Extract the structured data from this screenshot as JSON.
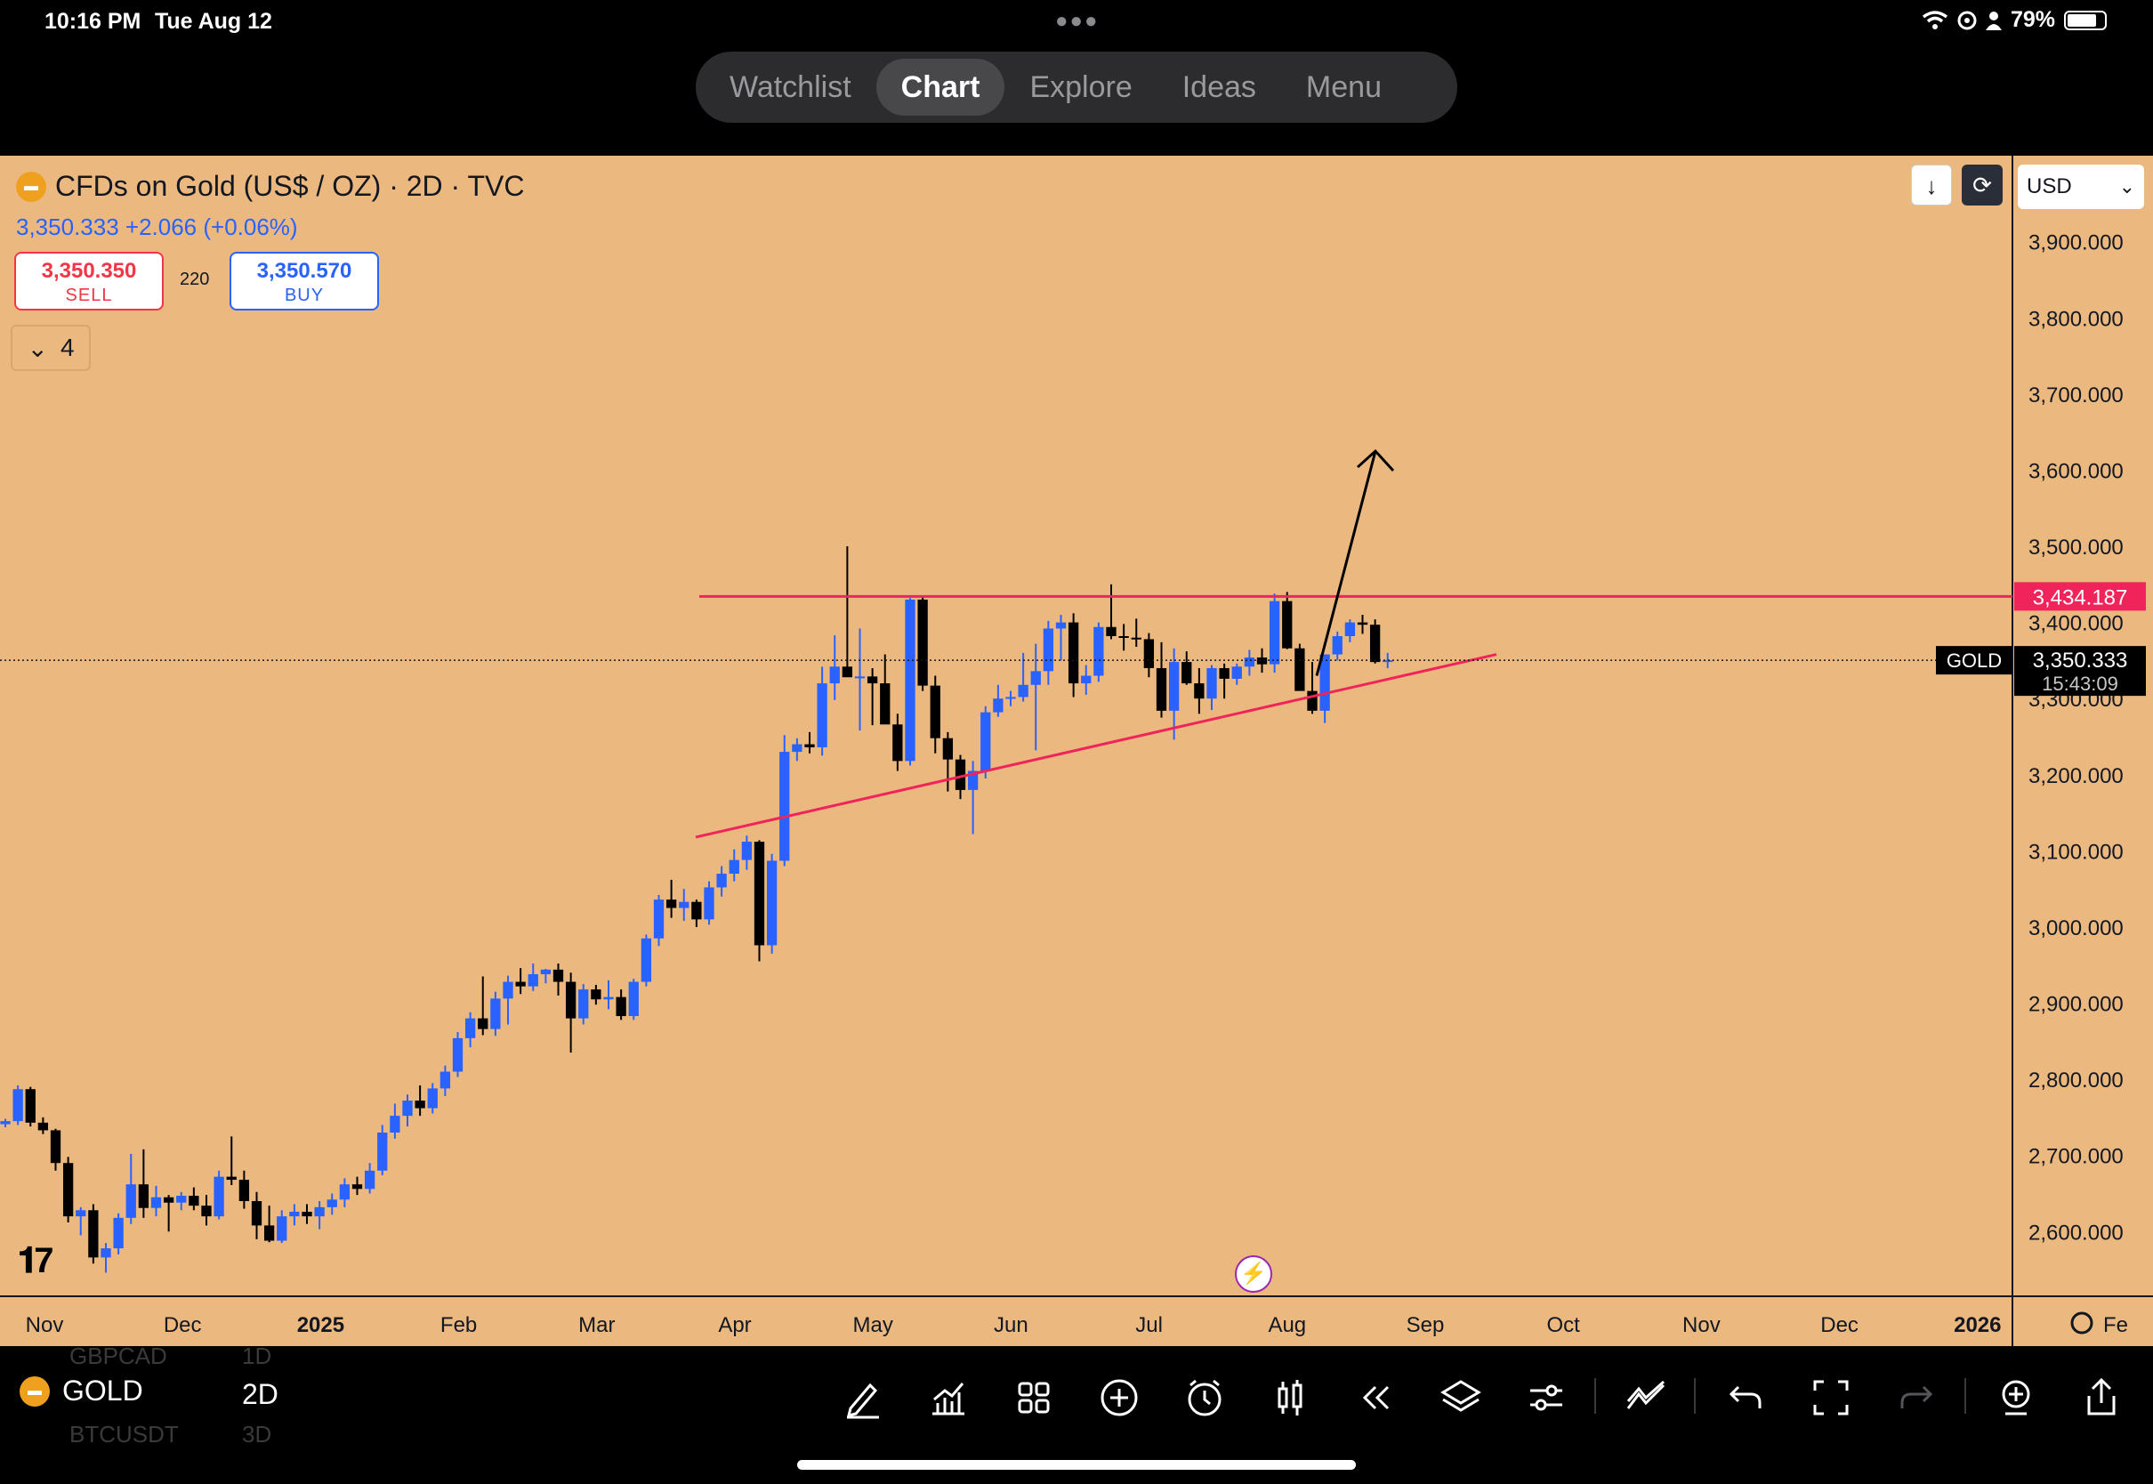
{
  "status_bar": {
    "time": "10:16 PM",
    "date": "Tue Aug 12",
    "battery": "79%",
    "battery_level": 0.79,
    "icons": [
      "wifi-icon",
      "location-icon",
      "person-icon",
      "battery-icon"
    ]
  },
  "top_tabs": [
    {
      "label": "Watchlist",
      "active": false
    },
    {
      "label": "Chart",
      "active": true
    },
    {
      "label": "Explore",
      "active": false
    },
    {
      "label": "Ideas",
      "active": false
    },
    {
      "label": "Menu",
      "active": false
    }
  ],
  "chart_header": {
    "title": "CFDs on Gold (US$ / OZ) · 2D · TVC",
    "price_line": "3,350.333 +2.066 (+0.06%)",
    "sell_price": "3,350.350",
    "sell_label": "SELL",
    "spread": "220",
    "buy_price": "3,350.570",
    "buy_label": "BUY",
    "indicators_count": "4",
    "currency": "USD"
  },
  "colors": {
    "background": "#ebb97f",
    "bull_candle": "#2962ff",
    "bear_candle": "#000000",
    "drawing_line": "#f0245a",
    "arrow": "#000000"
  },
  "chart_data": {
    "type": "candlestick",
    "symbol": "GOLD",
    "interval": "2D",
    "y_axis": {
      "range": [
        2515,
        4013
      ],
      "ticks": [
        "3,900.000",
        "3,800.000",
        "3,700.000",
        "3,600.000",
        "3,500.000",
        "3,400.000",
        "3,300.000",
        "3,200.000",
        "3,100.000",
        "3,000.000",
        "2,900.000",
        "2,800.000",
        "2,700.000",
        "2,600.000"
      ]
    },
    "x_axis": {
      "ticks": [
        "Nov",
        "Dec",
        "2025",
        "Feb",
        "Mar",
        "Apr",
        "May",
        "Jun",
        "Jul",
        "Aug",
        "Sep",
        "Oct",
        "Nov",
        "Dec",
        "2026",
        "Fe"
      ],
      "bold": [
        "2025",
        "2026"
      ]
    },
    "price_labels": [
      {
        "name": "resistance",
        "value": 3434.187,
        "text": "3,434.187"
      },
      {
        "name": "last",
        "value": 3350.333,
        "text": "3,350.333",
        "countdown": "15:43:09",
        "tag": "GOLD"
      }
    ],
    "drawings": [
      {
        "type": "horizontal-line",
        "name": "resistance-line",
        "price": 3434.187,
        "from": "Apr",
        "to": "right-edge"
      },
      {
        "type": "trend-line",
        "name": "ascending-support",
        "from": {
          "date": "Apr",
          "price": 3118
        },
        "to": {
          "date": "Oct",
          "price": 3358
        }
      },
      {
        "type": "arrow",
        "name": "breakout-arrow",
        "from": {
          "date": "Aug/Sep",
          "price": 3330
        },
        "to": {
          "date": "Sep",
          "price": 3625
        }
      }
    ],
    "candles": [
      [
        2741,
        2748,
        2737,
        2745
      ],
      [
        2745,
        2792,
        2740,
        2787
      ],
      [
        2787,
        2790,
        2738,
        2743
      ],
      [
        2743,
        2750,
        2728,
        2733
      ],
      [
        2733,
        2735,
        2680,
        2690
      ],
      [
        2690,
        2698,
        2612,
        2620
      ],
      [
        2620,
        2632,
        2595,
        2628
      ],
      [
        2628,
        2636,
        2558,
        2566
      ],
      [
        2566,
        2585,
        2546,
        2578
      ],
      [
        2578,
        2624,
        2570,
        2618
      ],
      [
        2618,
        2702,
        2610,
        2662
      ],
      [
        2662,
        2708,
        2618,
        2631
      ],
      [
        2631,
        2660,
        2620,
        2645
      ],
      [
        2645,
        2648,
        2600,
        2638
      ],
      [
        2638,
        2652,
        2628,
        2647
      ],
      [
        2647,
        2658,
        2628,
        2634
      ],
      [
        2634,
        2648,
        2608,
        2620
      ],
      [
        2620,
        2680,
        2616,
        2672
      ],
      [
        2672,
        2725,
        2661,
        2668
      ],
      [
        2668,
        2680,
        2630,
        2640
      ],
      [
        2640,
        2652,
        2590,
        2608
      ],
      [
        2608,
        2634,
        2586,
        2588
      ],
      [
        2588,
        2628,
        2585,
        2620
      ],
      [
        2620,
        2636,
        2608,
        2626
      ],
      [
        2626,
        2636,
        2610,
        2620
      ],
      [
        2620,
        2640,
        2603,
        2632
      ],
      [
        2632,
        2650,
        2622,
        2642
      ],
      [
        2642,
        2670,
        2632,
        2662
      ],
      [
        2662,
        2672,
        2648,
        2656
      ],
      [
        2656,
        2690,
        2650,
        2680
      ],
      [
        2680,
        2740,
        2674,
        2730
      ],
      [
        2730,
        2768,
        2722,
        2752
      ],
      [
        2752,
        2780,
        2738,
        2772
      ],
      [
        2772,
        2792,
        2752,
        2762
      ],
      [
        2762,
        2795,
        2755,
        2788
      ],
      [
        2788,
        2818,
        2778,
        2810
      ],
      [
        2810,
        2862,
        2803,
        2854
      ],
      [
        2854,
        2888,
        2842,
        2880
      ],
      [
        2880,
        2935,
        2858,
        2866
      ],
      [
        2866,
        2915,
        2857,
        2906
      ],
      [
        2906,
        2936,
        2872,
        2928
      ],
      [
        2928,
        2946,
        2912,
        2922
      ],
      [
        2922,
        2952,
        2916,
        2938
      ],
      [
        2938,
        2945,
        2926,
        2944
      ],
      [
        2944,
        2952,
        2910,
        2928
      ],
      [
        2928,
        2940,
        2835,
        2880
      ],
      [
        2880,
        2925,
        2872,
        2918
      ],
      [
        2918,
        2924,
        2898,
        2905
      ],
      [
        2905,
        2930,
        2892,
        2908
      ],
      [
        2908,
        2918,
        2878,
        2883
      ],
      [
        2883,
        2932,
        2878,
        2928
      ],
      [
        2928,
        2990,
        2922,
        2985
      ],
      [
        2985,
        3042,
        2975,
        3036
      ],
      [
        3036,
        3062,
        3012,
        3025
      ],
      [
        3025,
        3050,
        3008,
        3033
      ],
      [
        3033,
        3036,
        3000,
        3010
      ],
      [
        3010,
        3060,
        3003,
        3052
      ],
      [
        3052,
        3080,
        3040,
        3070
      ],
      [
        3070,
        3102,
        3060,
        3088
      ],
      [
        3088,
        3120,
        3075,
        3112
      ],
      [
        3112,
        3114,
        2955,
        2976
      ],
      [
        2976,
        3096,
        2965,
        3087
      ],
      [
        3087,
        3252,
        3080,
        3230
      ],
      [
        3230,
        3248,
        3218,
        3240
      ],
      [
        3240,
        3256,
        3228,
        3236
      ],
      [
        3236,
        3342,
        3225,
        3320
      ],
      [
        3320,
        3383,
        3298,
        3342
      ],
      [
        3342,
        3500,
        3330,
        3328
      ],
      [
        3328,
        3392,
        3258,
        3329
      ],
      [
        3329,
        3340,
        3265,
        3320
      ],
      [
        3320,
        3358,
        3270,
        3266
      ],
      [
        3266,
        3280,
        3205,
        3218
      ],
      [
        3218,
        3432,
        3212,
        3430
      ],
      [
        3430,
        3435,
        3310,
        3317
      ],
      [
        3317,
        3330,
        3228,
        3248
      ],
      [
        3248,
        3256,
        3178,
        3220
      ],
      [
        3220,
        3226,
        3168,
        3180
      ],
      [
        3180,
        3218,
        3122,
        3205
      ],
      [
        3205,
        3290,
        3195,
        3282
      ],
      [
        3282,
        3318,
        3276,
        3300
      ],
      [
        3300,
        3310,
        3290,
        3302
      ],
      [
        3302,
        3360,
        3296,
        3318
      ],
      [
        3318,
        3372,
        3232,
        3336
      ],
      [
        3336,
        3402,
        3318,
        3392
      ],
      [
        3392,
        3410,
        3350,
        3400
      ],
      [
        3400,
        3412,
        3302,
        3320
      ],
      [
        3320,
        3344,
        3305,
        3330
      ],
      [
        3330,
        3400,
        3322,
        3394
      ],
      [
        3394,
        3450,
        3378,
        3382
      ],
      [
        3382,
        3398,
        3363,
        3380
      ],
      [
        3380,
        3405,
        3368,
        3378
      ],
      [
        3378,
        3386,
        3328,
        3340
      ],
      [
        3340,
        3374,
        3275,
        3284
      ],
      [
        3284,
        3366,
        3246,
        3348
      ],
      [
        3348,
        3362,
        3318,
        3320
      ],
      [
        3320,
        3340,
        3280,
        3300
      ],
      [
        3300,
        3344,
        3285,
        3340
      ],
      [
        3340,
        3346,
        3300,
        3326
      ],
      [
        3326,
        3346,
        3318,
        3342
      ],
      [
        3342,
        3364,
        3330,
        3354
      ],
      [
        3354,
        3366,
        3334,
        3345
      ],
      [
        3345,
        3438,
        3334,
        3428
      ],
      [
        3428,
        3440,
        3365,
        3366
      ],
      [
        3366,
        3372,
        3320,
        3310
      ],
      [
        3310,
        3348,
        3280,
        3284
      ],
      [
        3284,
        3358,
        3268,
        3358
      ],
      [
        3358,
        3388,
        3350,
        3382
      ],
      [
        3382,
        3404,
        3374,
        3400
      ],
      [
        3400,
        3410,
        3385,
        3397
      ],
      [
        3397,
        3404,
        3346,
        3348
      ],
      [
        3348,
        3360,
        3340,
        3350.333
      ]
    ]
  },
  "bottom_toolbar": {
    "symbol": "GOLD",
    "interval": "2D",
    "ghost_symbols": [
      "GBPCAD",
      "1D",
      "BTCUSDT",
      "3D"
    ],
    "tools": [
      "drawing-tool-icon",
      "indicators-icon",
      "layouts-icon",
      "add-icon",
      "alert-icon",
      "bar-style-icon",
      "replay-icon",
      "layers-icon",
      "settings-sliders-icon",
      "trend-tools-icon",
      "undo-icon",
      "fullscreen-icon",
      "redo-icon",
      "add-symbol-icon",
      "share-icon"
    ]
  }
}
